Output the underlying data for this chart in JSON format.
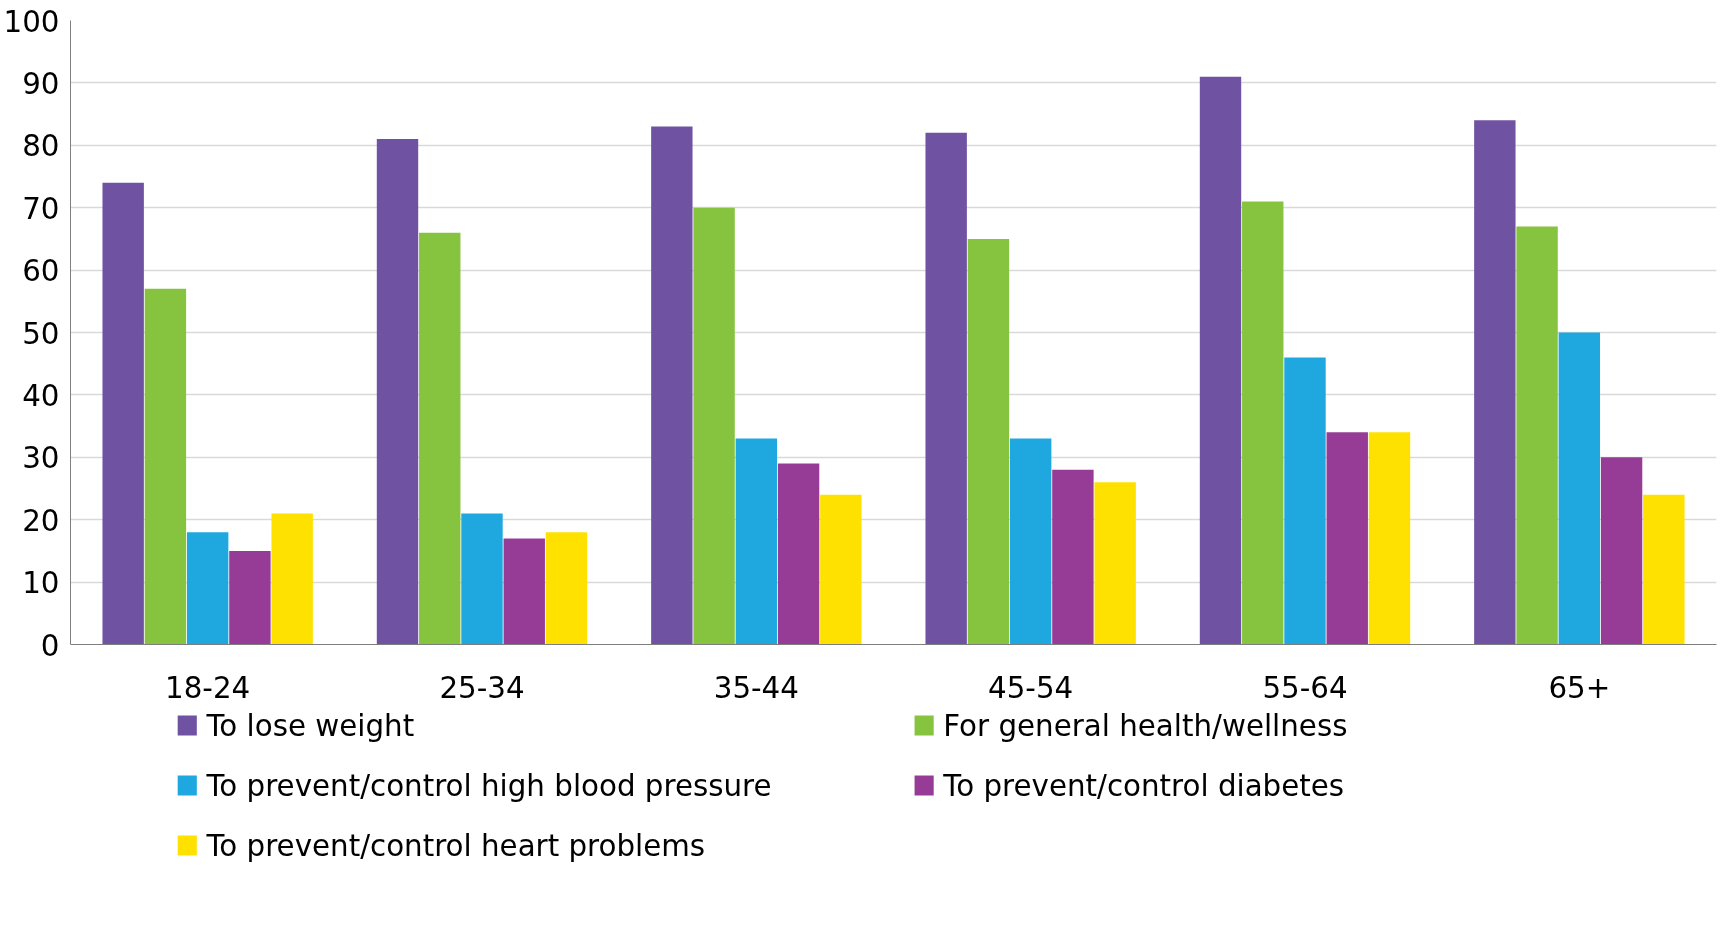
{
  "chart_data": {
    "type": "bar",
    "categories": [
      "18-24",
      "25-34",
      "35-44",
      "45-54",
      "55-64",
      "65+"
    ],
    "series": [
      {
        "name": "To lose weight",
        "color": "#7052a3",
        "values": [
          74,
          81,
          83,
          82,
          91,
          84
        ]
      },
      {
        "name": "For general health/wellness",
        "color": "#86c440",
        "values": [
          57,
          66,
          70,
          65,
          71,
          67
        ]
      },
      {
        "name": "To prevent/control high blood pressure",
        "color": "#1fa8e0",
        "values": [
          18,
          21,
          33,
          33,
          46,
          50
        ]
      },
      {
        "name": "To prevent/control diabetes",
        "color": "#963c96",
        "values": [
          15,
          17,
          29,
          28,
          34,
          30
        ]
      },
      {
        "name": "To prevent/control heart problems",
        "color": "#ffe100",
        "values": [
          21,
          18,
          24,
          26,
          34,
          24
        ]
      }
    ],
    "ylim": [
      0,
      100
    ],
    "yticks": [
      0,
      10,
      20,
      30,
      40,
      50,
      60,
      70,
      80,
      90,
      100
    ],
    "grid": "y",
    "legend": "bottom"
  }
}
